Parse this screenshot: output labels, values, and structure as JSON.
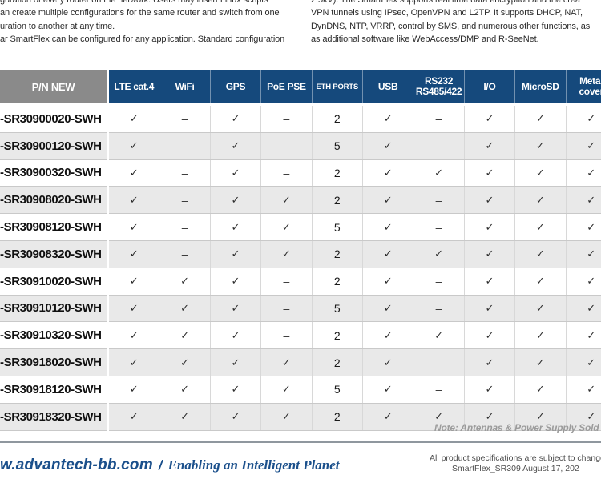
{
  "intro": {
    "left_lines": [
      "guration of every router on the network. Users may insert Linux scripts",
      "an create multiple configurations for the same router and switch from one",
      "uration to another at any time.",
      "ar SmartFlex can be configured for any application. Standard configuration"
    ],
    "right_lines": [
      "2.5kV). The SmartFlex supports real time data encryption and the crea",
      "VPN tunnels using IPsec, OpenVPN and L2TP. It supports DHCP, NAT,",
      "DynDNS, NTP, VRRP, control by SMS, and numerous other functions, as",
      "as additional software like WebAccess/DMP and R-SeeNet."
    ]
  },
  "table": {
    "columns": [
      {
        "key": "pn",
        "label": "P/N NEW"
      },
      {
        "key": "lte",
        "label": "LTE cat.4"
      },
      {
        "key": "wifi",
        "label": "WiFi"
      },
      {
        "key": "gps",
        "label": "GPS"
      },
      {
        "key": "poe",
        "label": "PoE PSE"
      },
      {
        "key": "eth",
        "label": "ETH PORTS"
      },
      {
        "key": "usb",
        "label": "USB"
      },
      {
        "key": "rs",
        "label": "RS232 RS485/422"
      },
      {
        "key": "io",
        "label": "I/O"
      },
      {
        "key": "microsd",
        "label": "MicroSD"
      },
      {
        "key": "metal",
        "label": "Metal cover"
      },
      {
        "key": "next",
        "label": ""
      }
    ],
    "rows": [
      {
        "pn": "-SR30900020-SWH",
        "values": [
          "✓",
          "–",
          "✓",
          "–",
          "2",
          "✓",
          "–",
          "✓",
          "✓",
          "✓",
          ""
        ]
      },
      {
        "pn": "-SR30900120-SWH",
        "values": [
          "✓",
          "–",
          "✓",
          "–",
          "5",
          "✓",
          "–",
          "✓",
          "✓",
          "✓",
          ""
        ]
      },
      {
        "pn": "-SR30900320-SWH",
        "values": [
          "✓",
          "–",
          "✓",
          "–",
          "2",
          "✓",
          "✓",
          "✓",
          "✓",
          "✓",
          ""
        ]
      },
      {
        "pn": "-SR30908020-SWH",
        "values": [
          "✓",
          "–",
          "✓",
          "✓",
          "2",
          "✓",
          "–",
          "✓",
          "✓",
          "✓",
          ""
        ]
      },
      {
        "pn": "-SR30908120-SWH",
        "values": [
          "✓",
          "–",
          "✓",
          "✓",
          "5",
          "✓",
          "–",
          "✓",
          "✓",
          "✓",
          ""
        ]
      },
      {
        "pn": "-SR30908320-SWH",
        "values": [
          "✓",
          "–",
          "✓",
          "✓",
          "2",
          "✓",
          "✓",
          "✓",
          "✓",
          "✓",
          ""
        ]
      },
      {
        "pn": "-SR30910020-SWH",
        "values": [
          "✓",
          "✓",
          "✓",
          "–",
          "2",
          "✓",
          "–",
          "✓",
          "✓",
          "✓",
          ""
        ]
      },
      {
        "pn": "-SR30910120-SWH",
        "values": [
          "✓",
          "✓",
          "✓",
          "–",
          "5",
          "✓",
          "–",
          "✓",
          "✓",
          "✓",
          ""
        ]
      },
      {
        "pn": "-SR30910320-SWH",
        "values": [
          "✓",
          "✓",
          "✓",
          "–",
          "2",
          "✓",
          "✓",
          "✓",
          "✓",
          "✓",
          ""
        ]
      },
      {
        "pn": "-SR30918020-SWH",
        "values": [
          "✓",
          "✓",
          "✓",
          "✓",
          "2",
          "✓",
          "–",
          "✓",
          "✓",
          "✓",
          ""
        ]
      },
      {
        "pn": "-SR30918120-SWH",
        "values": [
          "✓",
          "✓",
          "✓",
          "✓",
          "5",
          "✓",
          "–",
          "✓",
          "✓",
          "✓",
          ""
        ]
      },
      {
        "pn": "-SR30918320-SWH",
        "values": [
          "✓",
          "✓",
          "✓",
          "✓",
          "2",
          "✓",
          "✓",
          "✓",
          "✓",
          "✓",
          ""
        ]
      }
    ]
  },
  "note": "Note: Antennas & Power Supply Sold Se",
  "footer": {
    "url": "w.advantech-bb.com",
    "separator": "/",
    "tagline": "Enabling an Intelligent Planet",
    "legal_line1": "All product specifications are subject to change with",
    "legal_line2": "SmartFlex_SR309 August 17, 202"
  },
  "colors": {
    "header_blue": "#15497c",
    "header_gray": "#8a8a8a",
    "row_alt": "#e9e9e9",
    "footer_blue": "#1a4f8b",
    "note_gray": "#9b9b9b"
  }
}
